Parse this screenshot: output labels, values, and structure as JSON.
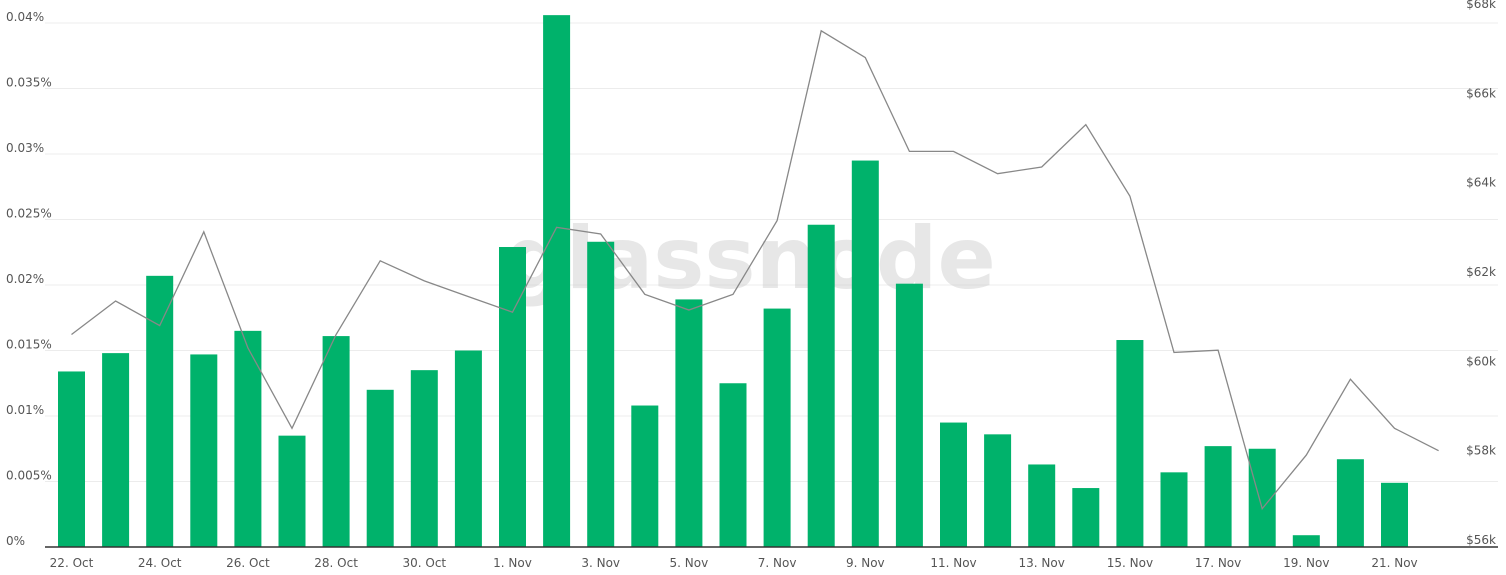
{
  "watermark": "glassnode",
  "chart_data": {
    "type": "bar",
    "categories": [
      "22. Oct",
      "23. Oct",
      "24. Oct",
      "25. Oct",
      "26. Oct",
      "27. Oct",
      "28. Oct",
      "29. Oct",
      "30. Oct",
      "31. Oct",
      "1. Nov",
      "2. Nov",
      "3. Nov",
      "4. Nov",
      "5. Nov",
      "6. Nov",
      "7. Nov",
      "8. Nov",
      "9. Nov",
      "10. Nov",
      "11. Nov",
      "12. Nov",
      "13. Nov",
      "14. Nov",
      "15. Nov",
      "16. Nov",
      "17. Nov",
      "18. Nov",
      "19. Nov",
      "20. Nov",
      "21. Nov",
      "22. Nov"
    ],
    "x_tick_labels": [
      "22. Oct",
      "24. Oct",
      "26. Oct",
      "28. Oct",
      "30. Oct",
      "1. Nov",
      "3. Nov",
      "5. Nov",
      "7. Nov",
      "9. Nov",
      "11. Nov",
      "13. Nov",
      "15. Nov",
      "17. Nov",
      "19. Nov",
      "21. Nov"
    ],
    "series": [
      {
        "type": "bar",
        "axis": "left",
        "color": "#00b26b",
        "values": [
          0.0134,
          0.0148,
          0.0207,
          0.0147,
          0.0165,
          0.0085,
          0.0161,
          0.012,
          0.0135,
          0.015,
          0.0229,
          0.0406,
          0.0233,
          0.0108,
          0.0189,
          0.0125,
          0.0182,
          0.0246,
          0.0295,
          0.0201,
          0.0095,
          0.0086,
          0.0063,
          0.0045,
          0.0158,
          0.0057,
          0.0077,
          0.0075,
          0.0009,
          0.0067,
          0.0049,
          null
        ]
      },
      {
        "type": "line",
        "axis": "right",
        "color": "#888888",
        "values": [
          60600,
          61350,
          60800,
          62900,
          60300,
          58500,
          60600,
          62250,
          61800,
          61450,
          61100,
          63000,
          62850,
          61500,
          61150,
          61500,
          63150,
          67400,
          66800,
          64700,
          64700,
          64200,
          64350,
          65300,
          63700,
          60200,
          60250,
          56700,
          57900,
          59600,
          58500,
          58000
        ]
      }
    ],
    "y_left": {
      "ticks": [
        "0%",
        "0.005%",
        "0.01%",
        "0.015%",
        "0.02%",
        "0.025%",
        "0.03%",
        "0.035%",
        "0.04%"
      ],
      "ylim": [
        0,
        0.042
      ]
    },
    "y_right": {
      "ticks": [
        "$56k",
        "$58k",
        "$60k",
        "$62k",
        "$64k",
        "$66k",
        "$68k"
      ],
      "ylim": [
        56000,
        68000
      ]
    },
    "grid": true,
    "legend": "none"
  }
}
